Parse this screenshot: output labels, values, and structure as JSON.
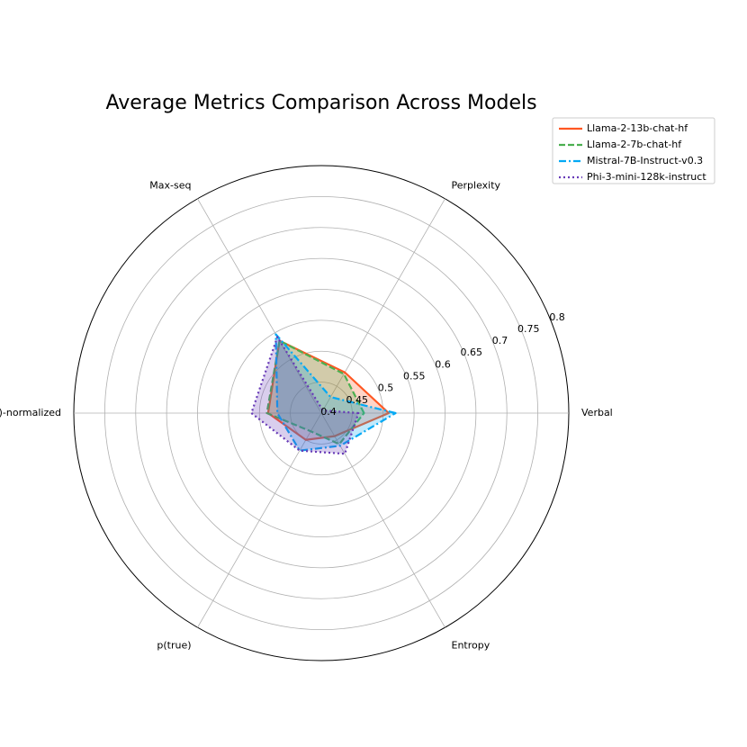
{
  "chart_data": {
    "type": "radar",
    "title": "Average Metrics Comparison Across Models",
    "axes": [
      "Verbal",
      "Perplexity",
      "Max-seq",
      "p(true)-normalized",
      "p(true)",
      "Entropy"
    ],
    "rlim": [
      0.4,
      0.8
    ],
    "r_ticks": [
      "0.4",
      "0.45",
      "0.5",
      "0.55",
      "0.6",
      "0.65",
      "0.7",
      "0.75",
      "0.8"
    ],
    "grid": true,
    "legend_position": "top-right",
    "series": [
      {
        "name": "Llama-2-13b-chat-hf",
        "color": "#ff5722",
        "line_style": "solid",
        "values": [
          0.509,
          0.476,
          0.535,
          0.486,
          0.45,
          0.443
        ]
      },
      {
        "name": "Llama-2-7b-chat-hf",
        "color": "#4caf50",
        "line_style": "dashed",
        "values": [
          0.469,
          0.473,
          0.535,
          0.488,
          0.434,
          0.458
        ]
      },
      {
        "name": "Mistral-7B-Instruct-v0.3",
        "color": "#03a9f4",
        "line_style": "dashdot",
        "values": [
          0.52,
          0.43,
          0.547,
          0.471,
          0.47,
          0.461
        ]
      },
      {
        "name": "Phi-3-mini-128k-instruct",
        "color": "#673ab7",
        "line_style": "dotted",
        "values": [
          0.46,
          0.405,
          0.542,
          0.513,
          0.47,
          0.476
        ]
      }
    ]
  }
}
